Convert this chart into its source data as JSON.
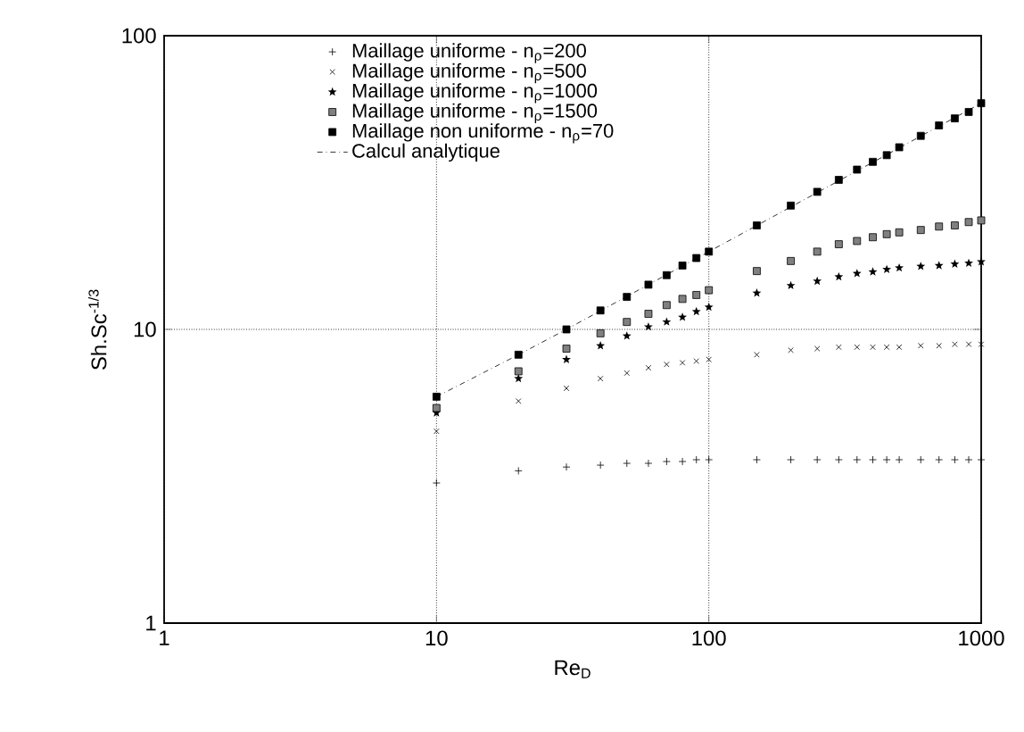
{
  "chart_data": {
    "type": "scatter",
    "xlabel": "Re$_{D}$",
    "ylabel": "Sh.Sc$^{-1/3}$",
    "log": "xy",
    "grid": true,
    "legend": "top",
    "xlim": [
      1,
      1000
    ],
    "ylim": [
      1,
      100
    ],
    "xticks": [
      1,
      10,
      100,
      1000
    ],
    "yticks": [
      1,
      10,
      100
    ],
    "x": [
      10,
      20,
      30,
      40,
      50,
      60,
      70,
      80,
      90,
      100,
      150,
      200,
      250,
      300,
      350,
      400,
      450,
      500,
      600,
      700,
      800,
      900,
      1000
    ],
    "series": [
      {
        "name": "Maillage uniforme - n$_{ρ}$=200",
        "color": "#000000",
        "marker": "plus",
        "values": [
          3.0,
          3.3,
          3.4,
          3.45,
          3.5,
          3.5,
          3.55,
          3.55,
          3.6,
          3.6,
          3.6,
          3.6,
          3.6,
          3.6,
          3.6,
          3.6,
          3.6,
          3.6,
          3.6,
          3.6,
          3.6,
          3.6,
          3.6
        ]
      },
      {
        "name": "Maillage uniforme - n$_{ρ}$=500",
        "color": "#000000",
        "marker": "cross",
        "values": [
          4.5,
          5.7,
          6.3,
          6.8,
          7.1,
          7.4,
          7.6,
          7.7,
          7.8,
          7.9,
          8.2,
          8.5,
          8.6,
          8.7,
          8.7,
          8.7,
          8.7,
          8.7,
          8.8,
          8.8,
          8.9,
          8.9,
          8.9
        ]
      },
      {
        "name": "Maillage uniforme - n$_{ρ}$=1000",
        "color": "#000000",
        "marker": "star",
        "values": [
          5.2,
          6.8,
          7.9,
          8.8,
          9.5,
          10.2,
          10.6,
          11.0,
          11.5,
          11.9,
          13.3,
          14.1,
          14.6,
          15.1,
          15.5,
          15.7,
          16.0,
          16.2,
          16.4,
          16.5,
          16.7,
          16.8,
          17.0
        ]
      },
      {
        "name": "Maillage uniforme - n$_{ρ}$=1500",
        "color": "#808080",
        "marker": "square",
        "values": [
          5.4,
          7.2,
          8.6,
          9.7,
          10.6,
          11.3,
          12.1,
          12.7,
          13.1,
          13.6,
          15.8,
          17.1,
          18.4,
          19.5,
          20.0,
          20.6,
          21.1,
          21.4,
          21.8,
          22.4,
          22.6,
          23.2,
          23.5
        ]
      },
      {
        "name": "Maillage non uniforme - n$_{ρ}$=70",
        "color": "#000000",
        "marker": "square",
        "values": [
          5.9,
          8.2,
          10.0,
          11.6,
          12.9,
          14.2,
          15.3,
          16.5,
          17.5,
          18.4,
          22.6,
          26.4,
          29.4,
          32.3,
          35.0,
          37.2,
          39.2,
          41.7,
          45.6,
          49.5,
          52.3,
          55.0,
          58.9
        ]
      },
      {
        "name": "Calcul analytique",
        "type": "line",
        "color": "#000000",
        "marker": "none",
        "line_style": "dashdot",
        "x": [
          10,
          20,
          30,
          100,
          1000
        ],
        "values": [
          5.9,
          8.2,
          10.0,
          18.4,
          58.9
        ]
      }
    ]
  }
}
